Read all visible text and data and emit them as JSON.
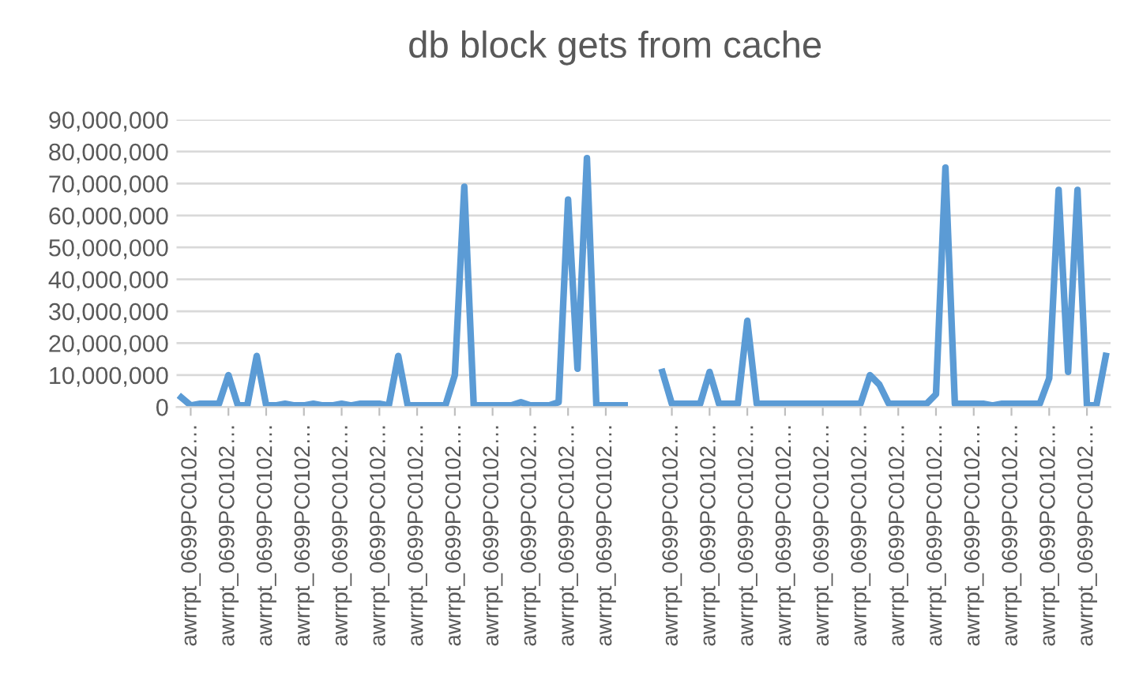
{
  "chart_data": {
    "type": "line",
    "title": "db block gets from cache",
    "categories": [
      null,
      "awrrpt_0699PC0102…",
      null,
      null,
      null,
      "awrrpt_0699PC0102…",
      null,
      null,
      null,
      "awrrpt_0699PC0102…",
      null,
      null,
      null,
      "awrrpt_0699PC0102…",
      null,
      null,
      null,
      "awrrpt_0699PC0102…",
      null,
      null,
      null,
      "awrrpt_0699PC0102…",
      null,
      null,
      null,
      "awrrpt_0699PC0102…",
      null,
      null,
      null,
      "awrrpt_0699PC0102…",
      null,
      null,
      null,
      "awrrpt_0699PC0102…",
      null,
      null,
      null,
      "awrrpt_0699PC0102…",
      null,
      null,
      null,
      "awrrpt_0699PC0102…",
      null,
      null,
      null,
      "awrrpt_0699PC0102…",
      null,
      null,
      null,
      null,
      null,
      null,
      "awrrpt_0699PC0102…",
      null,
      null,
      null,
      "awrrpt_0699PC0102…",
      null,
      null,
      null,
      "awrrpt_0699PC0102…",
      null,
      null,
      null,
      "awrrpt_0699PC0102…",
      null,
      null,
      null,
      "awrrpt_0699PC0102…",
      null,
      null,
      null,
      "awrrpt_0699PC0102…",
      null,
      null,
      null,
      "awrrpt_0699PC0102…",
      null,
      null,
      null,
      "awrrpt_0699PC0102…",
      null,
      null,
      null,
      "awrrpt_0699PC0102…",
      null,
      null,
      null,
      "awrrpt_0699PC0102…",
      null,
      null,
      null,
      "awrrpt_0699PC0102…",
      null,
      null,
      null,
      "awrrpt_0699PC0102…",
      null,
      null
    ],
    "series": [
      {
        "color": "#5b9bd5",
        "values": [
          3000000,
          500000,
          1000000,
          1000000,
          1000000,
          10000000,
          500000,
          500000,
          16000000,
          500000,
          500000,
          1000000,
          500000,
          500000,
          1000000,
          500000,
          500000,
          1000000,
          500000,
          1000000,
          1000000,
          1000000,
          500000,
          16000000,
          500000,
          500000,
          500000,
          500000,
          500000,
          10000000,
          69000000,
          500000,
          500000,
          500000,
          500000,
          500000,
          1500000,
          500000,
          500000,
          500000,
          1500000,
          65000000,
          12000000,
          78000000,
          500000,
          500000,
          500000,
          500000,
          null,
          null,
          null,
          11000000,
          1000000,
          1000000,
          1000000,
          1000000,
          11000000,
          1000000,
          1000000,
          1000000,
          27000000,
          1000000,
          1000000,
          1000000,
          1000000,
          1000000,
          1000000,
          1000000,
          1000000,
          1000000,
          1000000,
          1000000,
          1000000,
          10000000,
          7000000,
          1000000,
          1000000,
          1000000,
          1000000,
          1000000,
          4000000,
          75000000,
          1000000,
          1000000,
          1000000,
          1000000,
          500000,
          1000000,
          1000000,
          1000000,
          1000000,
          1000000,
          9000000,
          68000000,
          11000000,
          68000000,
          500000,
          500000,
          16000000
        ]
      }
    ],
    "ylim": [
      0,
      90000000
    ],
    "yticks": [
      {
        "value": 0,
        "label": "0"
      },
      {
        "value": 10000000,
        "label": "10,000,000"
      },
      {
        "value": 20000000,
        "label": "20,000,000"
      },
      {
        "value": 30000000,
        "label": "30,000,000"
      },
      {
        "value": 40000000,
        "label": "40,000,000"
      },
      {
        "value": 50000000,
        "label": "50,000,000"
      },
      {
        "value": 60000000,
        "label": "60,000,000"
      },
      {
        "value": 70000000,
        "label": "70,000,000"
      },
      {
        "value": 80000000,
        "label": "80,000,000"
      },
      {
        "value": 90000000,
        "label": "90,000,000"
      }
    ],
    "grid": "y",
    "line_style": "solid"
  }
}
